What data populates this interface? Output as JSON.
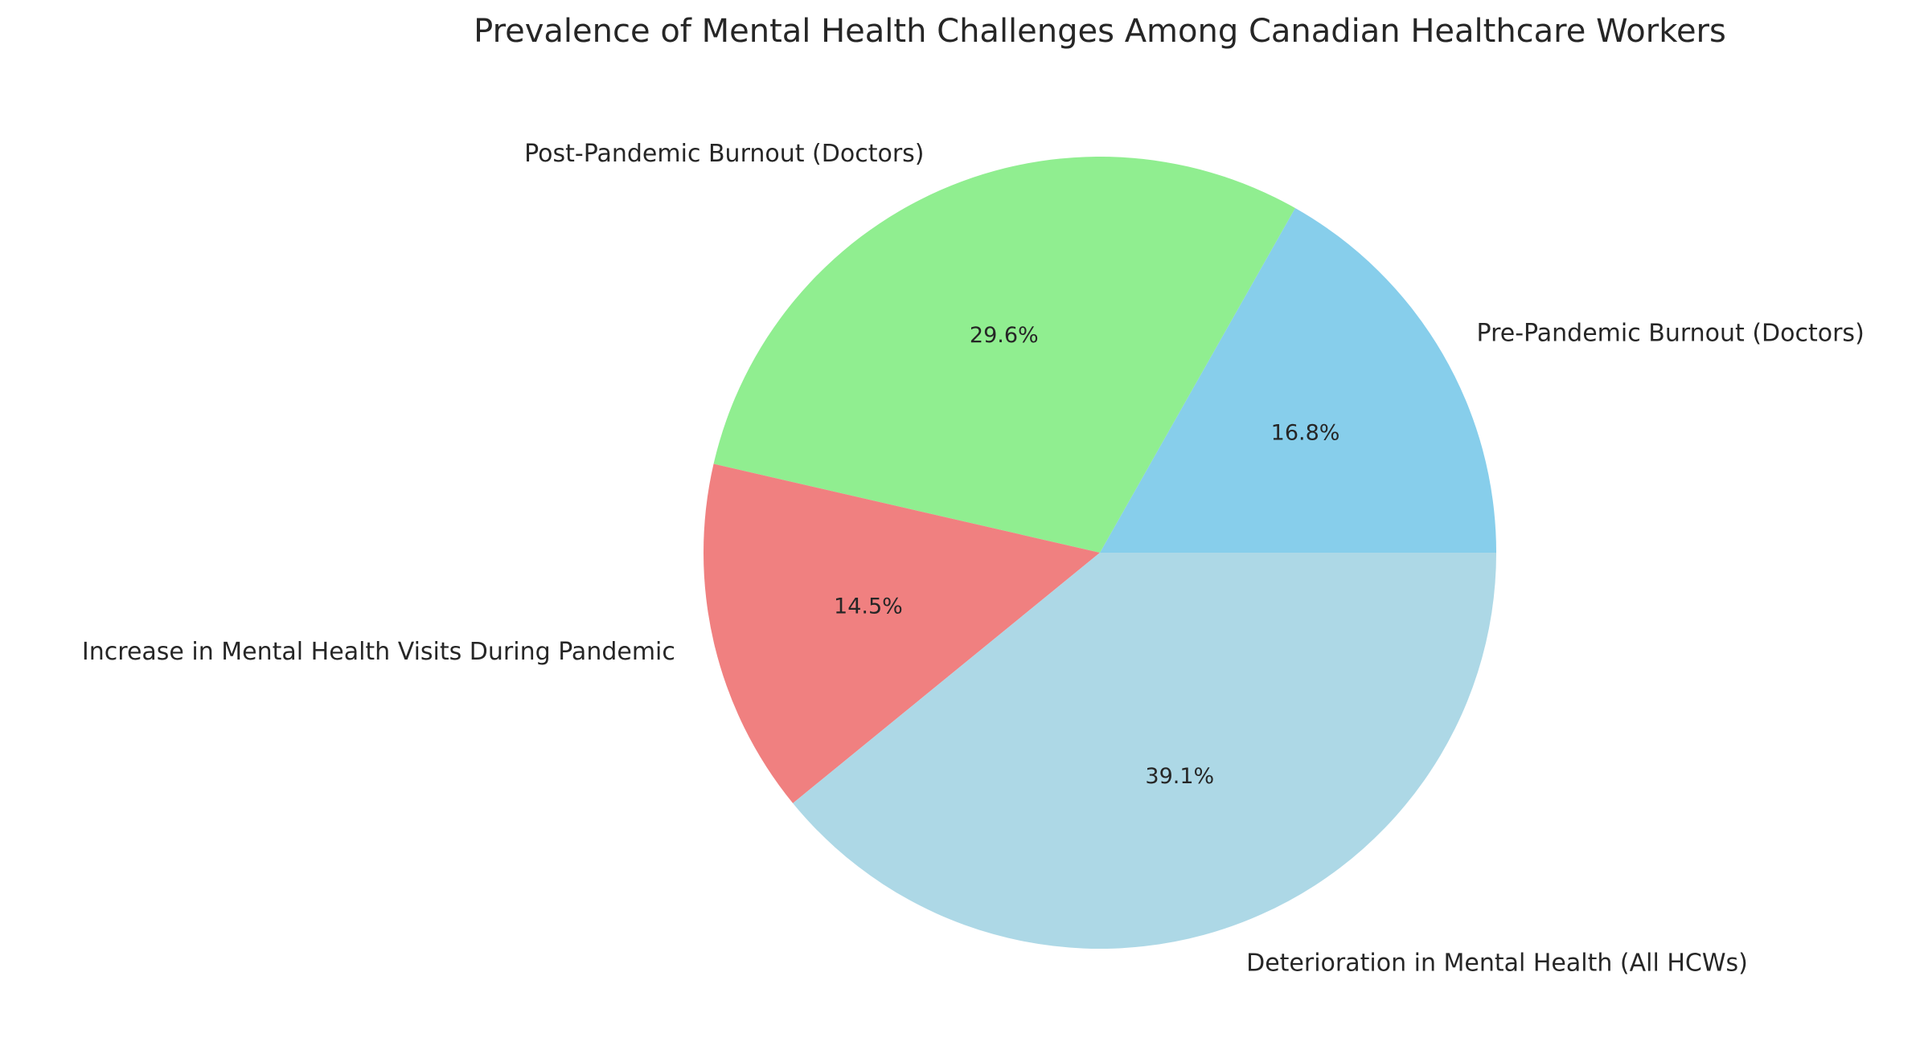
{
  "chart_data": {
    "type": "pie",
    "title": "Prevalence of Mental Health Challenges Among Canadian Healthcare Workers",
    "categories": [
      "Pre-Pandemic Burnout (Doctors)",
      "Post-Pandemic Burnout (Doctors)",
      "Increase in Mental Health Visits During Pandemic",
      "Deterioration in Mental Health (All HCWs)"
    ],
    "values": [
      16.8,
      29.6,
      14.5,
      39.1
    ],
    "percent_labels": [
      "16.8%",
      "29.6%",
      "14.5%",
      "39.1%"
    ],
    "colors": [
      "#87ceeb",
      "#90ee90",
      "#f08080",
      "#add8e6"
    ],
    "start_angle": 0,
    "direction": "counterclockwise"
  }
}
